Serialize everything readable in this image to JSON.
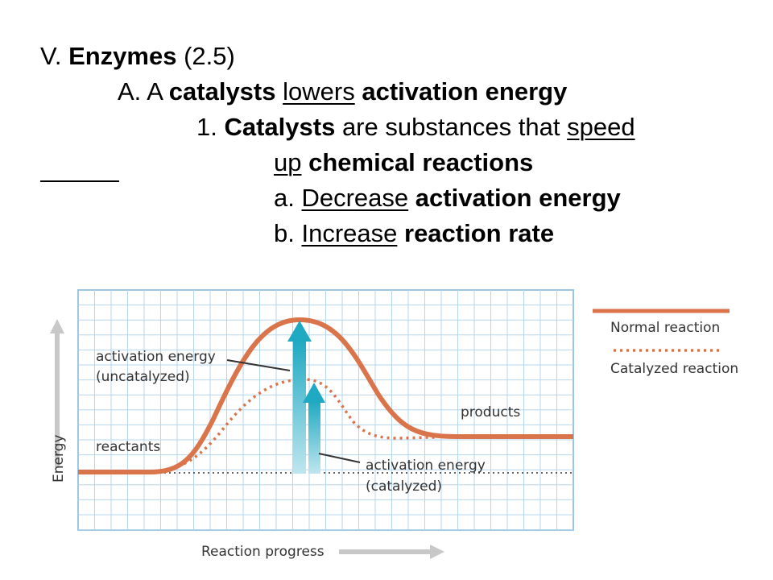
{
  "slide": {
    "line1": {
      "a": "V. ",
      "b": "Enzymes",
      "c": " (2.5)"
    },
    "line2": {
      "a": "A. A ",
      "b": "catalysts",
      "c": " ",
      "u": "lowers",
      "d": " ",
      "e": "activation energy"
    },
    "line3": {
      "a": "1. ",
      "b": "Catalysts",
      "c": " are substances that ",
      "u": "speed"
    },
    "line4": {
      "u": "up",
      "a": " ",
      "b": "chemical reactions"
    },
    "line5": {
      "a": "a. ",
      "u": "Decrease",
      "c": " ",
      "b": "activation energy"
    },
    "line6": {
      "a": "b. ",
      "u": "Increase",
      "c": " ",
      "b": "reaction rate"
    }
  },
  "diagram": {
    "y_axis_label": "Energy",
    "x_axis_label": "Reaction progress",
    "labels": {
      "act_uncat_1": "activation energy",
      "act_uncat_2": "(uncatalyzed)",
      "act_cat_1": "activation energy",
      "act_cat_2": "(catalyzed)",
      "reactants": "reactants",
      "products": "products"
    },
    "legend": {
      "normal": "Normal reaction",
      "catalyzed": "Catalyzed reaction"
    },
    "colors": {
      "curve": "#d9744b",
      "grid": "#a9cfe8",
      "arrow": "#2fb3c9",
      "axis_arrow": "#c8c8c8"
    }
  }
}
